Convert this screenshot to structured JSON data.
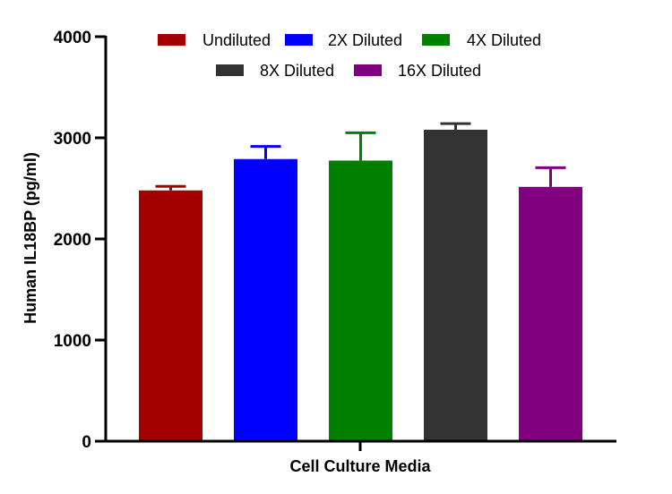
{
  "chart_data": {
    "type": "bar",
    "title": "",
    "xlabel": "Cell Culture Media",
    "ylabel": "Human IL18BP (pg/ml)",
    "ylim": [
      0,
      4000
    ],
    "yticks": [
      "0",
      "1000",
      "2000",
      "3000",
      "4000"
    ],
    "grid": false,
    "legend_position": "top",
    "series": [
      {
        "name": "Undiluted",
        "value": 2480,
        "error": 40,
        "color": "#A50000"
      },
      {
        "name": "2X Diluted",
        "value": 2790,
        "error": 125,
        "color": "#0000FF"
      },
      {
        "name": "4X Diluted",
        "value": 2775,
        "error": 275,
        "color": "#008000"
      },
      {
        "name": "8X Diluted",
        "value": 3080,
        "error": 60,
        "color": "#333333"
      },
      {
        "name": "16X Diluted",
        "value": 2515,
        "error": 190,
        "color": "#800080"
      }
    ]
  }
}
